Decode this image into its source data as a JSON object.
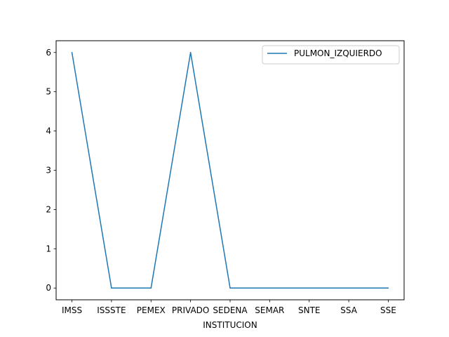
{
  "chart_data": {
    "type": "line",
    "title": "",
    "xlabel": "INSTITUCION",
    "ylabel": "",
    "categories": [
      "IMSS",
      "ISSSTE",
      "PEMEX",
      "PRIVADO",
      "SEDENA",
      "SEMAR",
      "SNTE",
      "SSA",
      "SSE"
    ],
    "series": [
      {
        "name": "PULMON_IZQUIERDO",
        "values": [
          6,
          0,
          0,
          6,
          0,
          0,
          0,
          0,
          0
        ],
        "color": "#1f77b4"
      }
    ],
    "yticks": [
      0,
      1,
      2,
      3,
      4,
      5,
      6
    ],
    "ylim": [
      -0.3,
      6.3
    ],
    "grid": false,
    "legend_position": "upper right"
  }
}
